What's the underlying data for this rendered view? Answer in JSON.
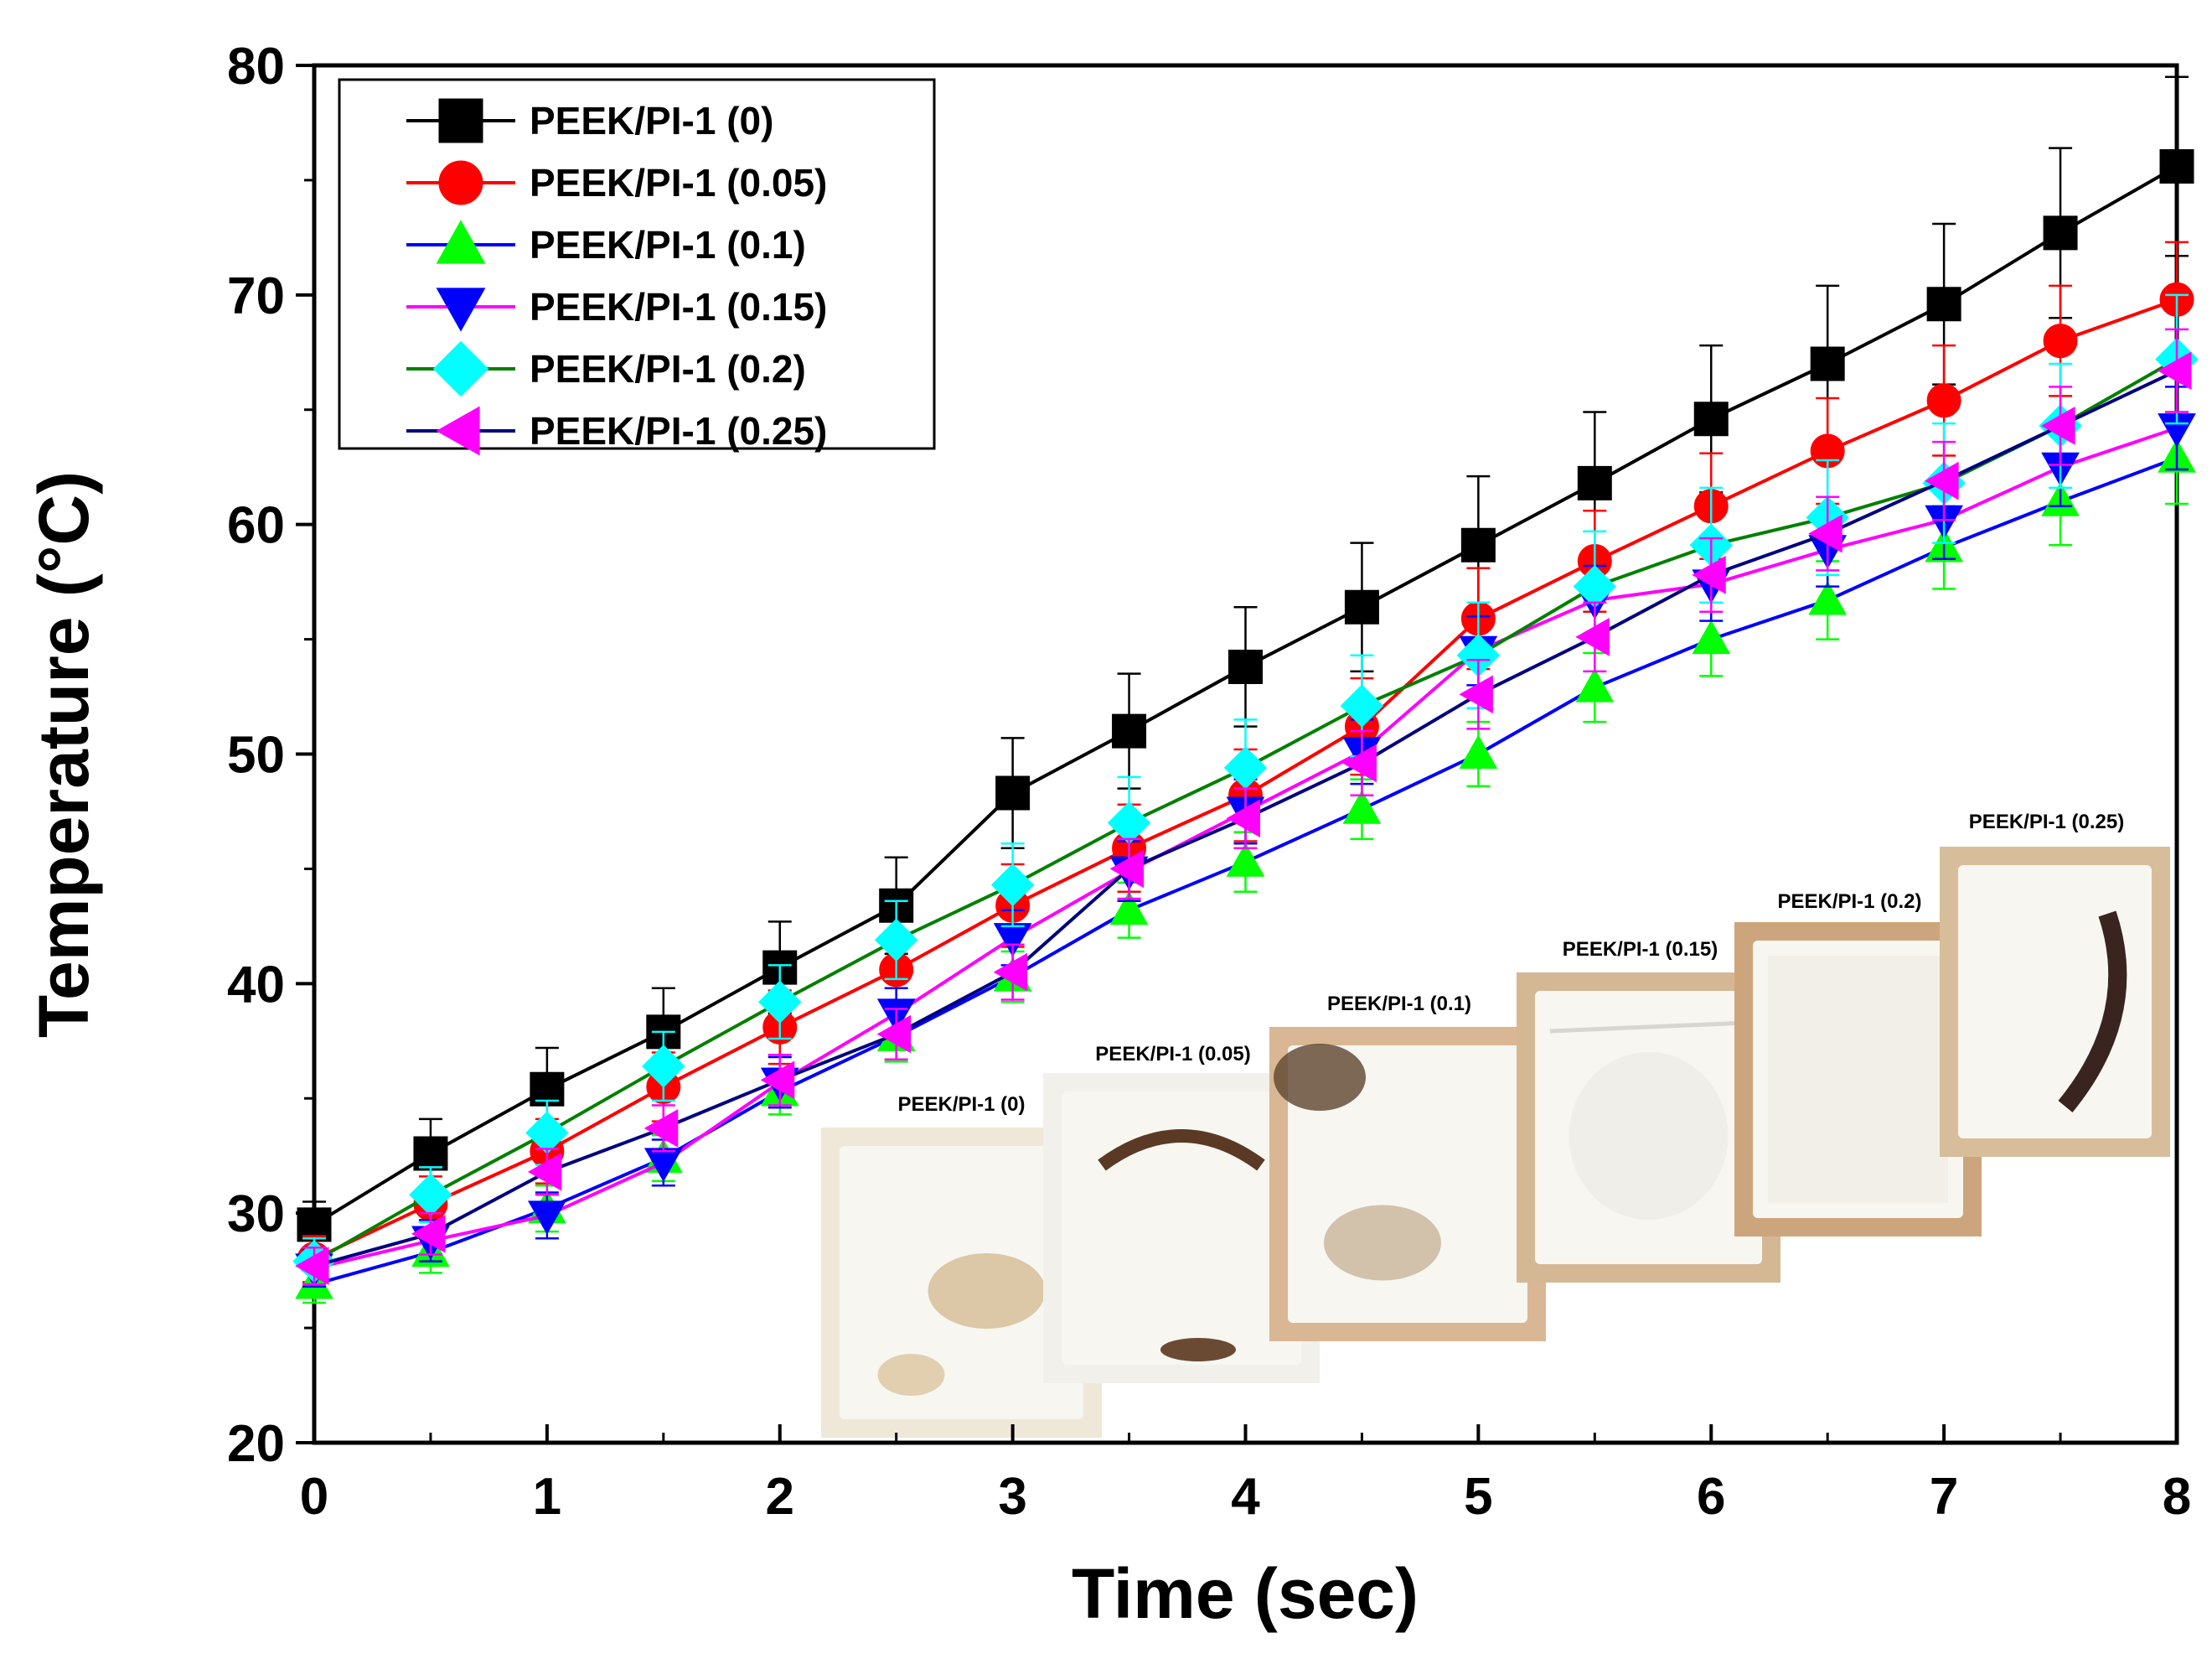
{
  "chart_data": {
    "type": "line",
    "title": "",
    "xlabel": "Time (sec)",
    "ylabel": "Temperature (°C)",
    "xlim": [
      0,
      8
    ],
    "ylim": [
      20,
      80
    ],
    "x_ticks": [
      "0",
      "1",
      "2",
      "3",
      "4",
      "5",
      "6",
      "7",
      "8"
    ],
    "y_ticks": [
      "20",
      "30",
      "40",
      "50",
      "60",
      "70",
      "80"
    ],
    "grid": false,
    "legend_position": "top-left",
    "x": [
      0,
      0.5,
      1,
      1.5,
      2,
      2.5,
      3,
      3.5,
      4,
      4.5,
      5,
      5.5,
      6,
      6.5,
      7,
      7.5,
      8
    ],
    "series": [
      {
        "name": "PEEK/PI-1 (0)",
        "color": "#000000",
        "line_color": "#000000",
        "marker": "square",
        "values": [
          29.5,
          32.6,
          35.4,
          37.9,
          40.7,
          43.4,
          48.3,
          51.0,
          53.8,
          56.4,
          59.1,
          61.8,
          64.6,
          67.0,
          69.6,
          72.7,
          75.6
        ],
        "errors": [
          1.0,
          1.5,
          1.8,
          1.9,
          2.0,
          2.1,
          2.4,
          2.5,
          2.6,
          2.8,
          3.0,
          3.1,
          3.2,
          3.4,
          3.5,
          3.7,
          3.9
        ]
      },
      {
        "name": "PEEK/PI-1 (0.05)",
        "color": "#ff0000",
        "line_color": "#ff0000",
        "marker": "circle",
        "values": [
          28.0,
          30.4,
          32.7,
          35.5,
          38.1,
          40.6,
          43.4,
          45.9,
          48.2,
          51.2,
          55.9,
          58.4,
          60.8,
          63.2,
          65.4,
          68.0,
          69.8
        ],
        "errors": [
          1.0,
          1.2,
          1.4,
          1.5,
          1.6,
          1.7,
          1.8,
          1.9,
          2.0,
          2.1,
          2.2,
          2.2,
          2.3,
          2.3,
          2.4,
          2.4,
          2.5
        ]
      },
      {
        "name": "PEEK/PI-1 (0.1)",
        "color": "#00ff00",
        "line_color": "#0000ff",
        "marker": "triangle-up",
        "values": [
          26.9,
          28.3,
          30.2,
          32.4,
          35.3,
          37.7,
          40.3,
          43.2,
          45.3,
          47.6,
          50.0,
          52.9,
          55.0,
          56.7,
          59.0,
          61.0,
          62.9
        ],
        "errors": [
          0.8,
          0.9,
          1.0,
          1.0,
          1.0,
          1.1,
          1.1,
          1.2,
          1.3,
          1.3,
          1.4,
          1.5,
          1.6,
          1.7,
          1.8,
          1.9,
          2.0
        ]
      },
      {
        "name": "PEEK/PI-1 (0.15)",
        "color": "#0000ff",
        "line_color": "#ff00ff",
        "marker": "triangle-down",
        "values": [
          27.6,
          28.8,
          29.9,
          32.2,
          35.7,
          38.7,
          42.0,
          44.9,
          47.5,
          50.1,
          54.5,
          56.7,
          57.4,
          58.9,
          60.2,
          62.5,
          64.2
        ],
        "errors": [
          0.8,
          0.9,
          1.0,
          1.0,
          1.1,
          1.1,
          1.2,
          1.3,
          1.4,
          1.4,
          1.5,
          1.5,
          1.6,
          1.6,
          1.7,
          1.7,
          1.8
        ]
      },
      {
        "name": "PEEK/PI-1 (0.2)",
        "color": "#00ffff",
        "line_color": "#008000",
        "marker": "diamond",
        "values": [
          27.9,
          30.8,
          33.5,
          36.4,
          39.2,
          41.9,
          44.3,
          47.0,
          49.4,
          52.1,
          54.3,
          57.3,
          59.1,
          60.3,
          61.8,
          64.3,
          67.2
        ],
        "errors": [
          1.0,
          1.2,
          1.4,
          1.5,
          1.6,
          1.7,
          1.8,
          2.0,
          2.1,
          2.2,
          2.3,
          2.4,
          2.5,
          2.5,
          2.6,
          2.7,
          2.8
        ]
      },
      {
        "name": "PEEK/PI-1 (0.25)",
        "color": "#ff00ff",
        "line_color": "#000080",
        "marker": "triangle-left",
        "values": [
          27.7,
          29.1,
          31.8,
          33.7,
          35.8,
          37.8,
          40.5,
          45.0,
          47.2,
          49.6,
          52.6,
          55.1,
          57.8,
          59.6,
          61.9,
          64.3,
          66.7
        ],
        "errors": [
          0.8,
          0.9,
          1.0,
          1.0,
          1.1,
          1.1,
          1.2,
          1.3,
          1.3,
          1.4,
          1.5,
          1.5,
          1.6,
          1.6,
          1.7,
          1.7,
          1.8
        ]
      }
    ],
    "annotations": [
      {
        "label": "PEEK/PI-1 (0)",
        "kind": "burnt-sheet"
      },
      {
        "label": "PEEK/PI-1 (0.05)",
        "kind": "arc-char"
      },
      {
        "label": "PEEK/PI-1 (0.1)",
        "kind": "torn-char"
      },
      {
        "label": "PEEK/PI-1 (0.15)",
        "kind": "crinkled-sheet"
      },
      {
        "label": "PEEK/PI-1 (0.2)",
        "kind": "clean-sheet"
      },
      {
        "label": "PEEK/PI-1 (0.25)",
        "kind": "spot-char"
      }
    ]
  }
}
